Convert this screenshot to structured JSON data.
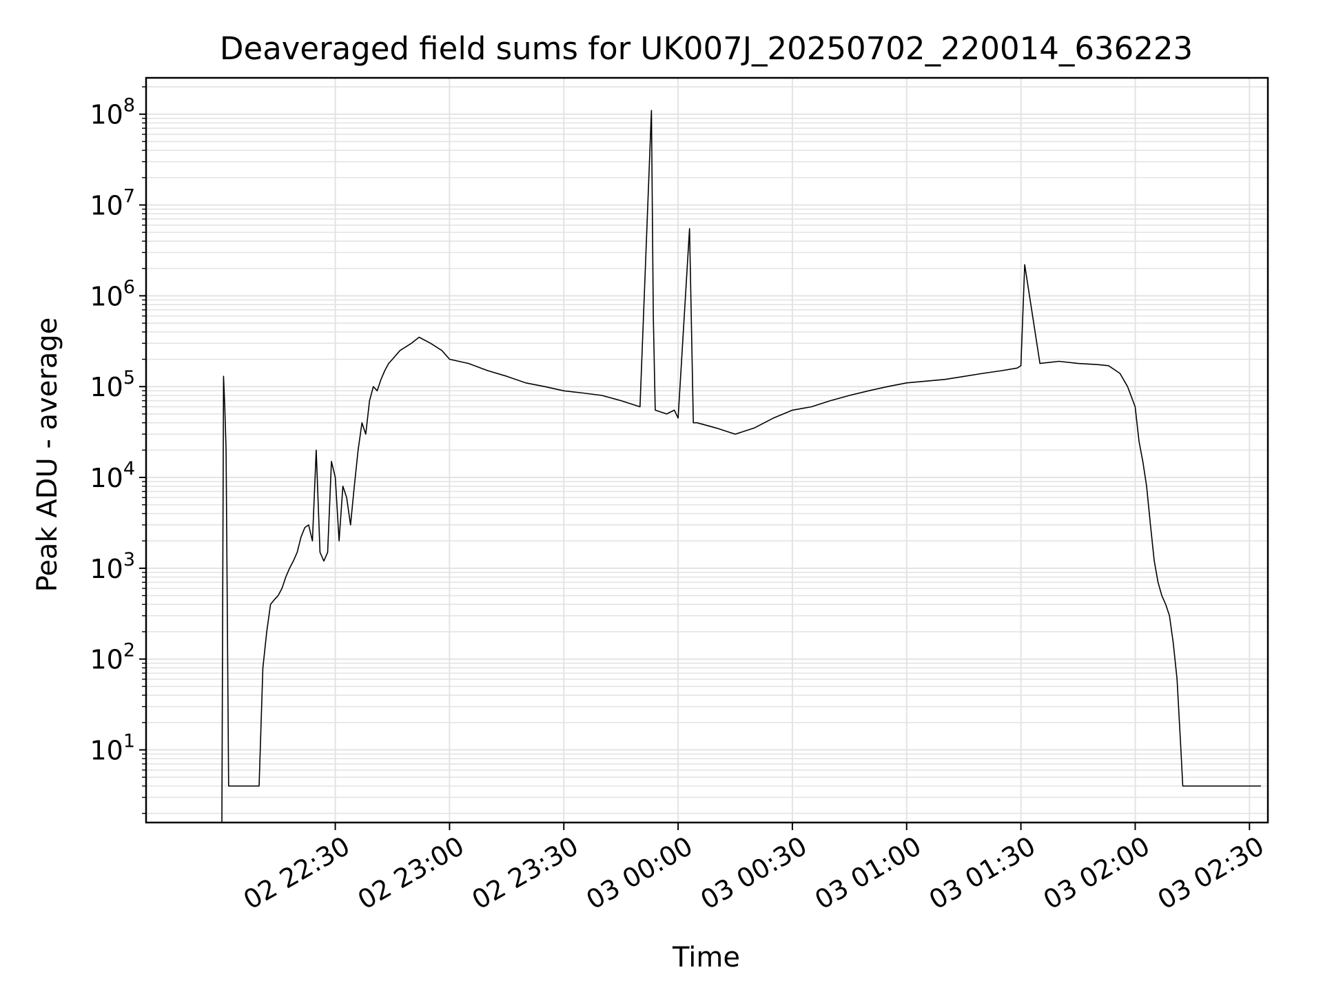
{
  "chart_data": {
    "type": "line",
    "title": "Deaveraged field sums for UK007J_20250702_220014_636223",
    "xlabel": "Time",
    "ylabel": "Peak ADU - average",
    "y_scale": "log",
    "x_axis": "time",
    "grid": true,
    "line_color": "#000000",
    "grid_color": "#e3e3e3",
    "x_tick_labels": [
      "02 22:30",
      "02 23:00",
      "02 23:30",
      "03 00:00",
      "03 00:30",
      "03 01:00",
      "03 01:30",
      "03 02:00",
      "03 02:30"
    ],
    "y_tick_labels": [
      {
        "base": "10",
        "exp": "1"
      },
      {
        "base": "10",
        "exp": "2"
      },
      {
        "base": "10",
        "exp": "3"
      },
      {
        "base": "10",
        "exp": "4"
      },
      {
        "base": "10",
        "exp": "5"
      },
      {
        "base": "10",
        "exp": "6"
      },
      {
        "base": "10",
        "exp": "7"
      },
      {
        "base": "10",
        "exp": "8"
      }
    ],
    "series": [
      {
        "x": [
          "22:00:14",
          "22:00:40",
          "22:01:00",
          "22:01:20",
          "22:02:00",
          "22:02:30",
          "22:03:30",
          "22:04:30",
          "22:05:00",
          "22:05:30",
          "22:06:00",
          "22:07:00",
          "22:08:00",
          "22:09:00",
          "22:10:00",
          "22:11:00",
          "22:12:00",
          "22:13:00",
          "22:14:00",
          "22:15:00",
          "22:16:00",
          "22:17:00",
          "22:18:00",
          "22:19:00",
          "22:20:00",
          "22:21:00",
          "22:22:00",
          "22:23:00",
          "22:24:00",
          "22:25:00",
          "22:26:00",
          "22:27:00",
          "22:28:00",
          "22:29:00",
          "22:30:00",
          "22:31:00",
          "22:32:00",
          "22:33:00",
          "22:34:00",
          "22:35:00",
          "22:36:00",
          "22:37:00",
          "22:38:00",
          "22:39:00",
          "22:40:00",
          "22:41:00",
          "22:42:00",
          "22:43:00",
          "22:44:00",
          "22:45:00",
          "22:47:00",
          "22:50:00",
          "22:52:00",
          "22:55:00",
          "22:58:00",
          "23:00:00",
          "23:05:00",
          "23:10:00",
          "23:15:00",
          "23:20:00",
          "23:25:00",
          "23:30:00",
          "23:35:00",
          "23:40:00",
          "23:45:00",
          "23:50:00",
          "23:53:00",
          "23:53:30",
          "23:54:00",
          "23:57:00",
          "23:59:00",
          "00:00:00",
          "00:03:00",
          "00:04:00",
          "00:05:00",
          "00:10:00",
          "00:15:00",
          "00:20:00",
          "00:25:00",
          "00:30:00",
          "00:35:00",
          "00:40:00",
          "00:45:00",
          "00:50:00",
          "00:55:00",
          "01:00:00",
          "01:10:00",
          "01:20:00",
          "01:25:00",
          "01:29:00",
          "01:30:00",
          "01:31:00",
          "01:35:00",
          "01:40:00",
          "01:45:00",
          "01:50:00",
          "01:53:00",
          "01:56:00",
          "01:58:00",
          "02:00:00",
          "02:01:00",
          "02:02:00",
          "02:03:00",
          "02:04:00",
          "02:05:00",
          "02:06:00",
          "02:07:00",
          "02:08:00",
          "02:09:00",
          "02:10:00",
          "02:11:00",
          "02:12:00",
          "02:12:30",
          "02:13:00",
          "02:14:00",
          "02:20:00",
          "02:30:00",
          "02:33:00"
        ],
        "y": [
          1.5,
          130000,
          60000,
          20000,
          4,
          4,
          4,
          4,
          4,
          4,
          4,
          4,
          4,
          4,
          4,
          80,
          200,
          400,
          450,
          500,
          600,
          800,
          1000,
          1200,
          1500,
          2200,
          2800,
          3000,
          2000,
          20000,
          1500,
          1200,
          1500,
          15000,
          10000,
          2000,
          8000,
          6000,
          3000,
          8000,
          20000,
          40000,
          30000,
          70000,
          100000,
          90000,
          120000,
          150000,
          180000,
          200000,
          250000,
          300000,
          350000,
          300000,
          250000,
          200000,
          180000,
          150000,
          130000,
          110000,
          100000,
          90000,
          85000,
          80000,
          70000,
          60000,
          110000000,
          600000,
          55000,
          50000,
          55000,
          45000,
          5500000,
          40000,
          40000,
          35000,
          30000,
          35000,
          45000,
          55000,
          60000,
          70000,
          80000,
          90000,
          100000,
          110000,
          120000,
          140000,
          150000,
          160000,
          170000,
          2200000,
          180000,
          190000,
          180000,
          175000,
          170000,
          140000,
          100000,
          60000,
          25000,
          15000,
          8000,
          3000,
          1200,
          700,
          500,
          400,
          300,
          150,
          60,
          10,
          4,
          4,
          4,
          4,
          4,
          4
        ]
      }
    ]
  }
}
